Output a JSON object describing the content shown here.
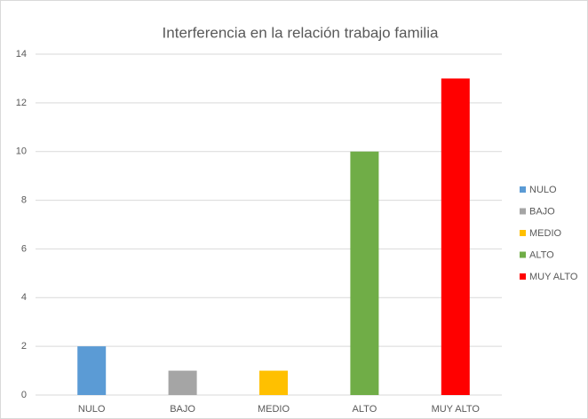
{
  "chart_data": {
    "type": "bar",
    "title": "Interferencia en la relación trabajo familia",
    "categories": [
      "NULO",
      "BAJO",
      "MEDIO",
      "ALTO",
      "MUY ALTO"
    ],
    "values": [
      2,
      1,
      1,
      10,
      13
    ],
    "colors": [
      "#5b9bd5",
      "#a5a5a5",
      "#ffc000",
      "#70ad47",
      "#ff0000"
    ],
    "ylim": [
      0,
      14
    ],
    "yticks": [
      0,
      2,
      4,
      6,
      8,
      10,
      12,
      14
    ],
    "grid": true,
    "legend": "right"
  }
}
